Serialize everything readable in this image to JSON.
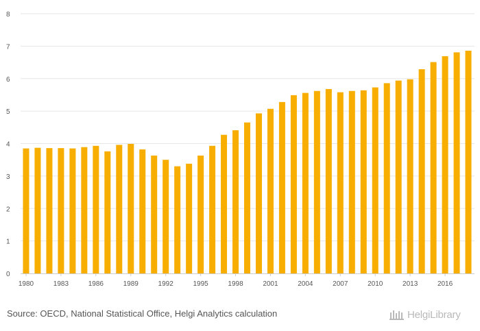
{
  "chart_data": {
    "type": "bar",
    "title": "",
    "xlabel": "",
    "ylabel": "",
    "ylim": [
      0,
      8
    ],
    "yticks": [
      "0",
      "1",
      "2",
      "3",
      "4",
      "5",
      "6",
      "7",
      "8"
    ],
    "grid": true,
    "categories": [
      "1980",
      "1981",
      "1982",
      "1983",
      "1984",
      "1985",
      "1986",
      "1987",
      "1988",
      "1989",
      "1990",
      "1991",
      "1992",
      "1993",
      "1994",
      "1995",
      "1996",
      "1997",
      "1998",
      "1999",
      "2000",
      "2001",
      "2002",
      "2003",
      "2004",
      "2005",
      "2006",
      "2007",
      "2008",
      "2009",
      "2010",
      "2011",
      "2012",
      "2013",
      "2014",
      "2015",
      "2016",
      "2017",
      "2018"
    ],
    "xtick_labels": [
      "1980",
      "",
      "",
      "1983",
      "",
      "",
      "1986",
      "",
      "",
      "1989",
      "",
      "",
      "1992",
      "",
      "",
      "1995",
      "",
      "",
      "1998",
      "",
      "",
      "2001",
      "",
      "",
      "2004",
      "",
      "",
      "2007",
      "",
      "",
      "2010",
      "",
      "",
      "2013",
      "",
      "",
      "2016",
      "",
      ""
    ],
    "values": [
      3.85,
      3.87,
      3.86,
      3.86,
      3.85,
      3.89,
      3.93,
      3.76,
      3.96,
      3.99,
      3.82,
      3.63,
      3.5,
      3.3,
      3.38,
      3.63,
      3.93,
      4.27,
      4.41,
      4.65,
      4.93,
      5.07,
      5.28,
      5.49,
      5.56,
      5.62,
      5.68,
      5.58,
      5.62,
      5.64,
      5.73,
      5.86,
      5.94,
      5.98,
      6.29,
      6.51,
      6.69,
      6.81,
      6.86
    ],
    "bar_color": "#F7AE00",
    "grid_color": "#E6E6E6"
  },
  "footer": {
    "source": "Source: OECD, National Statistical Office, Helgi Analytics calculation",
    "logo_text": "HelgiLibrary"
  }
}
